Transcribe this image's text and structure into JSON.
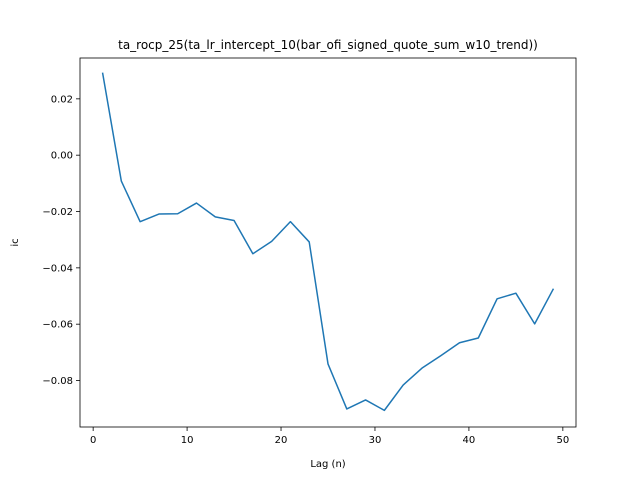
{
  "chart_data": {
    "type": "line",
    "title": "ta_rocp_25(ta_lr_intercept_10(bar_ofi_signed_quote_sum_w10_trend))",
    "xlabel": "Lag (n)",
    "ylabel": "ic",
    "xlim": [
      -1.4,
      51.4
    ],
    "ylim": [
      -0.0965,
      0.0345
    ],
    "xticks": [
      0,
      10,
      20,
      30,
      40,
      50
    ],
    "xtick_labels": [
      "0",
      "10",
      "20",
      "30",
      "40",
      "50"
    ],
    "yticks": [
      0.02,
      0.0,
      -0.02,
      -0.04,
      -0.06,
      -0.08
    ],
    "ytick_labels": [
      "0.02",
      "0.00",
      "−0.02",
      "−0.04",
      "−0.06",
      "−0.08"
    ],
    "grid": false,
    "series": [
      {
        "color": "#1f77b4",
        "x": [
          1,
          3,
          5,
          7,
          9,
          11,
          13,
          15,
          17,
          19,
          21,
          23,
          25,
          27,
          29,
          31,
          33,
          35,
          37,
          39,
          41,
          43,
          45,
          47,
          49
        ],
        "y": [
          0.0293,
          -0.0092,
          -0.0236,
          -0.0209,
          -0.0208,
          -0.017,
          -0.0219,
          -0.0232,
          -0.035,
          -0.0306,
          -0.0236,
          -0.0308,
          -0.0741,
          -0.0901,
          -0.0869,
          -0.0906,
          -0.0816,
          -0.0756,
          -0.0712,
          -0.0666,
          -0.0649,
          -0.051,
          -0.049,
          -0.0599,
          -0.0474
        ]
      }
    ]
  }
}
